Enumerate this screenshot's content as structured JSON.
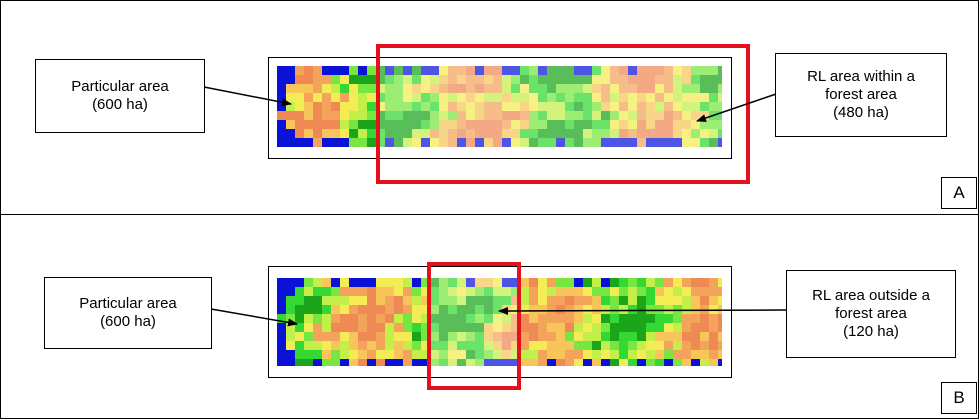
{
  "panels": [
    {
      "letter": "A",
      "left_label": [
        "Particular area",
        "(600 ha)"
      ],
      "right_label": [
        "RL area within a",
        "forest area",
        "(480 ha)"
      ]
    },
    {
      "letter": "B",
      "left_label": [
        "Particular area",
        "(600 ha)"
      ],
      "right_label": [
        "RL area outside a",
        "forest area",
        "(120 ha)"
      ]
    }
  ],
  "colors": {
    "border": "#000000",
    "highlight": "#e3101e",
    "water": "#0a12d8",
    "palette": [
      "#1aa51a",
      "#33d833",
      "#78e640",
      "#c2ef4a",
      "#f4ec55",
      "#f7c55a",
      "#f4a45a",
      "#ef8a55"
    ]
  }
}
